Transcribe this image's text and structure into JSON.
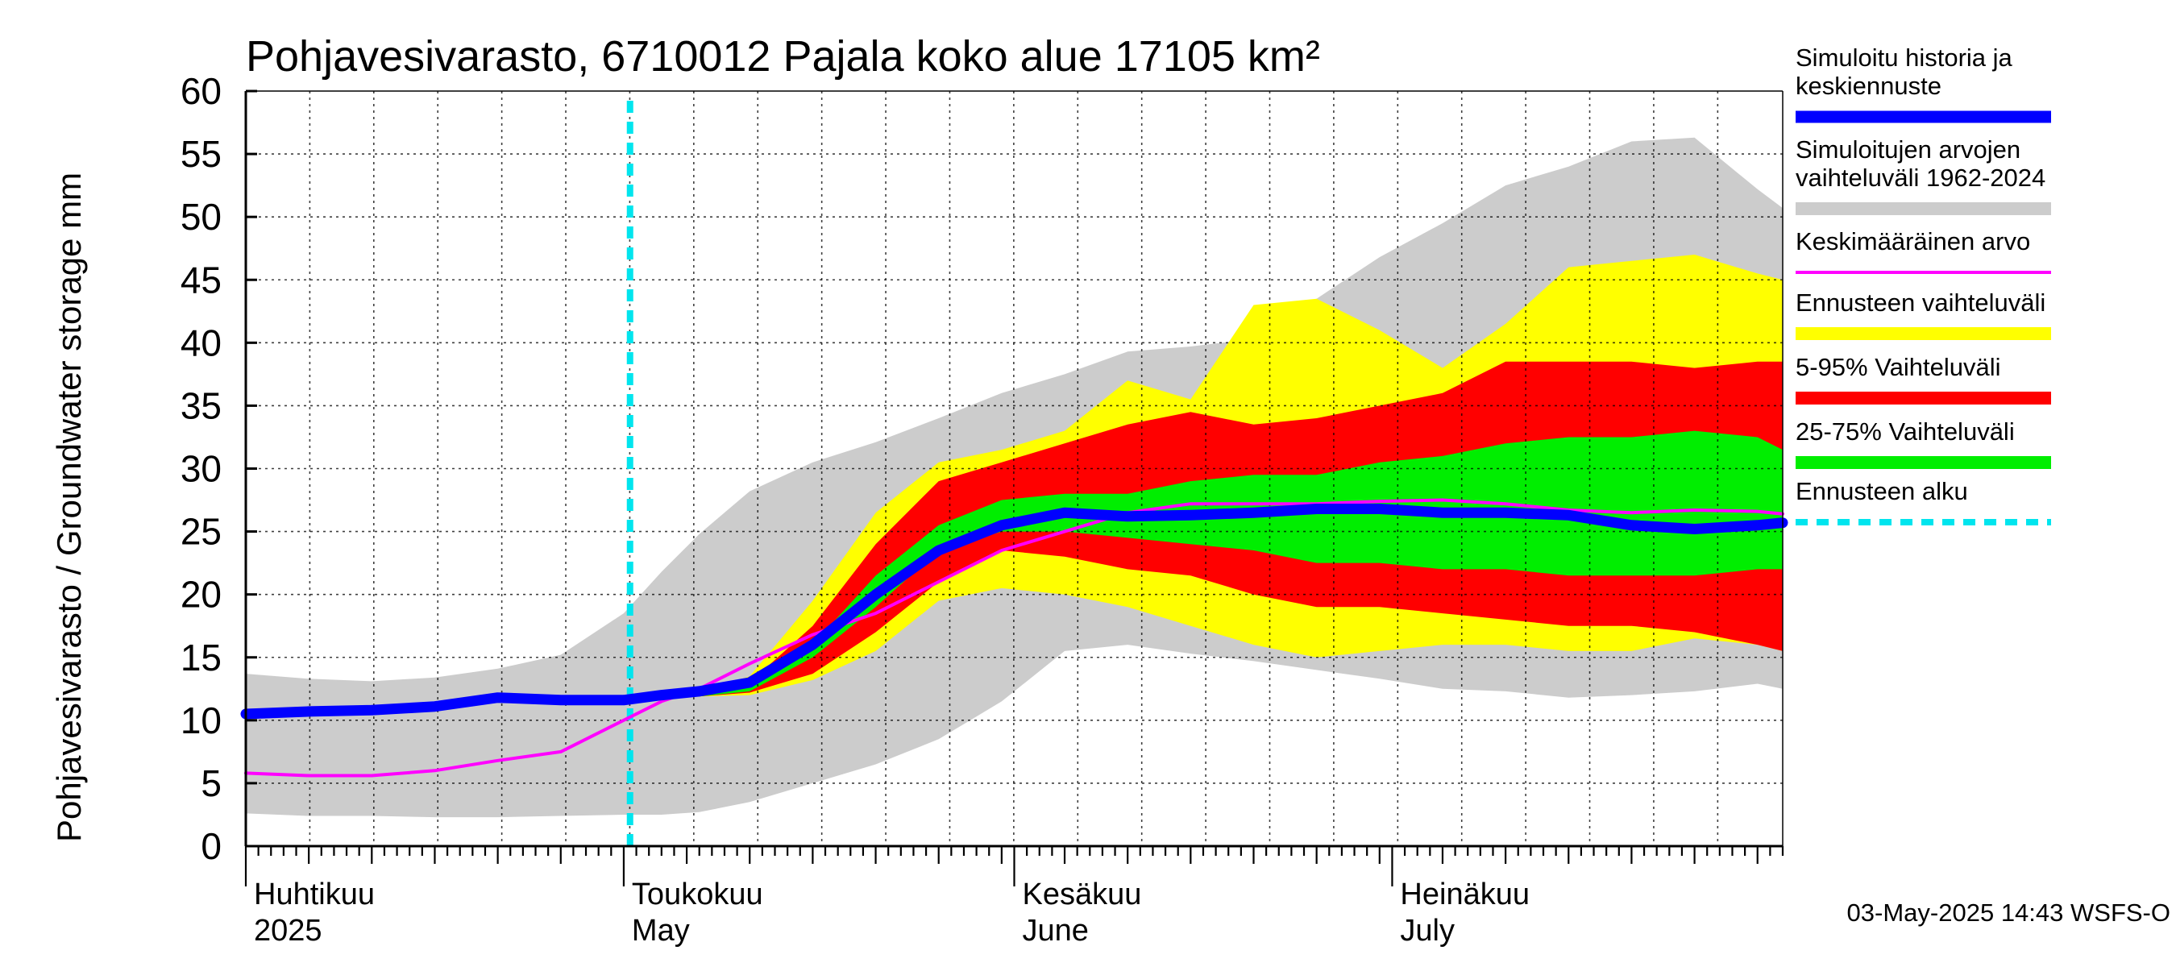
{
  "chart_data": {
    "type": "area",
    "title": "Pohjavesivarasto, 6710012 Pajala koko alue 17105 km²",
    "ylabel": "Pohjavesivarasto / Groundwater storage   mm",
    "ylim": [
      0,
      60
    ],
    "yticks": [
      0,
      5,
      10,
      15,
      20,
      25,
      30,
      35,
      40,
      45,
      50,
      55,
      60
    ],
    "xlim_days": [
      0,
      122
    ],
    "forecast_start_day": 30.5,
    "months": [
      {
        "fi": "Huhtikuu",
        "en": "2025",
        "day": 0
      },
      {
        "fi": "Toukokuu",
        "en": "May",
        "day": 30
      },
      {
        "fi": "Kesäkuu",
        "en": "June",
        "day": 61
      },
      {
        "fi": "Heinäkuu",
        "en": "July",
        "day": 91
      }
    ],
    "x_days": [
      0,
      5,
      10,
      15,
      20,
      25,
      30,
      33,
      36,
      40,
      45,
      50,
      55,
      60,
      65,
      70,
      75,
      80,
      85,
      90,
      95,
      100,
      105,
      110,
      115,
      120,
      122
    ],
    "series": [
      {
        "name": "Simuloitujen arvojen vaihteluväli 1962-2024",
        "color": "#cccccc",
        "upper": [
          13.7,
          13.3,
          13.1,
          13.4,
          14.1,
          15.2,
          18.5,
          21.8,
          24.8,
          28.2,
          30.5,
          32.1,
          34.0,
          36.0,
          37.5,
          39.3,
          39.7,
          40.3,
          43.5,
          46.8,
          49.5,
          52.5,
          54.0,
          56.0,
          56.3,
          52.2,
          50.7
        ],
        "lower": [
          2.6,
          2.4,
          2.4,
          2.3,
          2.3,
          2.4,
          2.5,
          2.5,
          2.7,
          3.5,
          5.0,
          6.5,
          8.5,
          11.5,
          15.5,
          16.0,
          15.3,
          14.7,
          14.0,
          13.3,
          12.5,
          12.3,
          11.8,
          12.0,
          12.3,
          12.9,
          12.5
        ]
      },
      {
        "name": "Ennusteen vaihteluväli",
        "color": "#ffff00",
        "upper": [
          null,
          null,
          null,
          null,
          null,
          null,
          null,
          12.0,
          12.2,
          13.5,
          19.5,
          26.5,
          30.5,
          31.5,
          33.0,
          37.0,
          35.5,
          43.0,
          43.5,
          41.0,
          38.0,
          41.5,
          46.0,
          46.5,
          47.0,
          45.5,
          45.0
        ],
        "lower": [
          null,
          null,
          null,
          null,
          null,
          null,
          null,
          12.0,
          11.9,
          12.0,
          13.2,
          15.5,
          19.5,
          20.5,
          20.0,
          19.0,
          17.5,
          16.0,
          15.0,
          15.5,
          16.0,
          16.0,
          15.5,
          15.5,
          16.5,
          16.0,
          15.5
        ]
      },
      {
        "name": "5-95% Vaihteluväli",
        "color": "#ff0000",
        "upper": [
          null,
          null,
          null,
          null,
          null,
          null,
          null,
          12.0,
          12.1,
          13.0,
          17.5,
          24.0,
          29.0,
          30.5,
          32.0,
          33.5,
          34.5,
          33.5,
          34.0,
          35.0,
          36.0,
          38.5,
          38.5,
          38.5,
          38.0,
          38.5,
          38.5
        ],
        "lower": [
          null,
          null,
          null,
          null,
          null,
          null,
          null,
          12.0,
          11.9,
          12.2,
          13.7,
          17.0,
          21.0,
          23.5,
          23.0,
          22.0,
          21.5,
          20.0,
          19.0,
          19.0,
          18.5,
          18.0,
          17.5,
          17.5,
          17.0,
          16.0,
          15.5
        ]
      },
      {
        "name": "25-75% Vaihteluväli",
        "color": "#00ee00",
        "upper": [
          null,
          null,
          null,
          null,
          null,
          null,
          null,
          12.0,
          12.1,
          12.7,
          16.0,
          21.5,
          25.5,
          27.5,
          28.0,
          28.0,
          29.0,
          29.5,
          29.5,
          30.5,
          31.0,
          32.0,
          32.5,
          32.5,
          33.0,
          32.5,
          31.5
        ],
        "lower": [
          null,
          null,
          null,
          null,
          null,
          null,
          null,
          12.0,
          11.9,
          12.3,
          15.0,
          19.0,
          23.5,
          25.0,
          25.0,
          24.5,
          24.0,
          23.5,
          22.5,
          22.5,
          22.0,
          22.0,
          21.5,
          21.5,
          21.5,
          22.0,
          22.0
        ]
      },
      {
        "name": "Keskimääräinen arvo",
        "color": "#ff00ff",
        "values": [
          5.8,
          5.6,
          5.6,
          6.0,
          6.8,
          7.5,
          10.0,
          11.5,
          12.5,
          14.5,
          16.8,
          18.5,
          21.0,
          23.5,
          25.0,
          26.5,
          27.2,
          27.2,
          27.2,
          27.4,
          27.5,
          27.2,
          26.7,
          26.5,
          26.7,
          26.6,
          26.4
        ]
      },
      {
        "name": "Simuloitu historia ja keskiennuste",
        "color": "#0000ff",
        "values": [
          10.5,
          10.7,
          10.8,
          11.1,
          11.8,
          11.6,
          11.6,
          12.0,
          12.3,
          13.0,
          16.0,
          20.0,
          23.5,
          25.5,
          26.5,
          26.2,
          26.3,
          26.5,
          26.8,
          26.8,
          26.5,
          26.5,
          26.3,
          25.5,
          25.2,
          25.5,
          25.7
        ]
      }
    ],
    "legend": [
      {
        "label": "Simuloitu historia ja keskiennuste",
        "color": "#0000ff",
        "kind": "thick-line"
      },
      {
        "label": "Simuloitujen arvojen vaihteluväli 1962-2024",
        "color": "#cccccc",
        "kind": "band"
      },
      {
        "label": "Keskimääräinen arvo",
        "color": "#ff00ff",
        "kind": "line"
      },
      {
        "label": "Ennusteen vaihteluväli",
        "color": "#ffff00",
        "kind": "band"
      },
      {
        "label": "5-95% Vaihteluväli",
        "color": "#ff0000",
        "kind": "band"
      },
      {
        "label": "25-75% Vaihteluväli",
        "color": "#00ee00",
        "kind": "band"
      },
      {
        "label": "Ennusteen alku",
        "color": "#00e5ee",
        "kind": "dashed"
      }
    ],
    "legend_lines": [
      [
        "Simuloitu historia ja",
        "keskiennuste"
      ],
      [
        "Simuloitujen arvojen",
        "vaihteluväli 1962-2024"
      ],
      [
        "Keskimääräinen arvo"
      ],
      [
        "Ennusteen vaihteluväli"
      ],
      [
        "5-95% Vaihteluväli"
      ],
      [
        "25-75% Vaihteluväli"
      ],
      [
        "Ennusteen alku"
      ]
    ],
    "footer": "03-May-2025 14:43 WSFS-O"
  }
}
